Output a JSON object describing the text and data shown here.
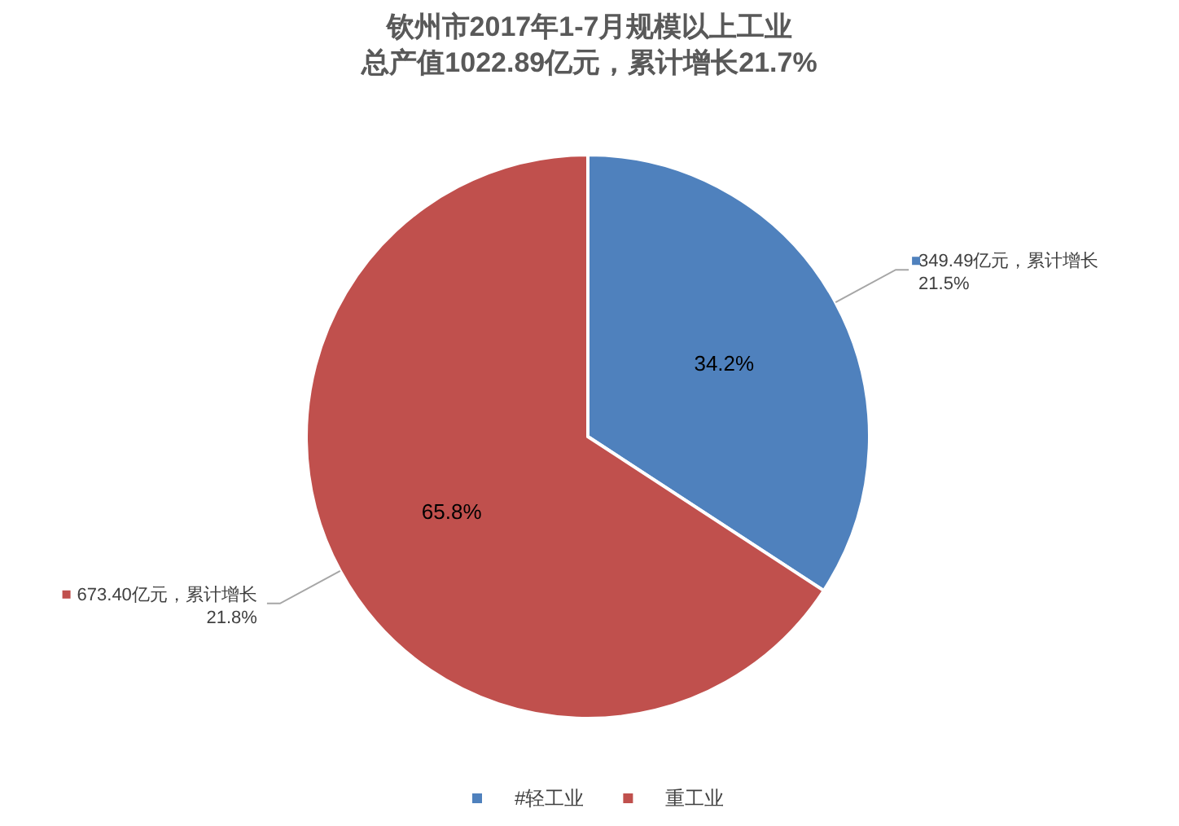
{
  "chart_data": {
    "type": "pie",
    "title": "钦州市2017年1-7月规模以上工业",
    "subtitle": "总产值1022.89亿元，累计增长21.7%",
    "categories": [
      "#轻工业",
      "重工业"
    ],
    "values": [
      34.2,
      65.8
    ],
    "colors": [
      "#4f81bd",
      "#c0504d"
    ],
    "value_labels": [
      "34.2%",
      "65.8%"
    ],
    "annotations": [
      "349.49亿元，累计增长\n21.5%",
      "673.40亿元，累计增长\n21.8%"
    ],
    "legend": "bottom"
  }
}
